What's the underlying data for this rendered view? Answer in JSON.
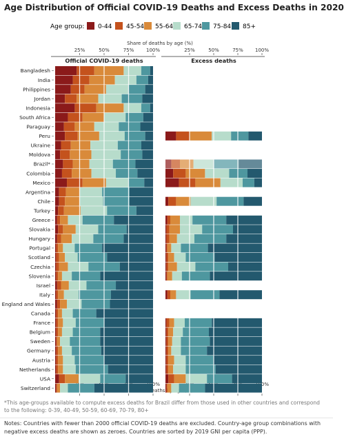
{
  "title": "Age Distribution of Official COVID-19 Deaths and Excess Deaths in 2020",
  "footnote": "*This age-groups available to compute excess deaths for Brazil differ from those used in other countries and correspond to the following: 0-39, 40-49, 50-59, 60-69, 70-79, 80+",
  "notes": "Notes: Countries with fewer than 2000 official COVID-19 deaths are excluded. Country-age group combinations with negative excess deaths are shown as zeroes. Countries are sorted by 2019 GNI per capita (PPP).",
  "chart_data": {
    "type": "bar",
    "orientation": "horizontal-stacked-percent",
    "legend": {
      "title": "Age group:",
      "placement": "top",
      "items": [
        "0-44",
        "45-54",
        "55-64",
        "65-74",
        "75-84",
        "85+"
      ],
      "colors": [
        "#8b1a1a",
        "#c4521d",
        "#d98a3a",
        "#b7dccb",
        "#4e979f",
        "#23596e"
      ]
    },
    "axis_title": "Share of deaths by age (%)",
    "ticks": [
      "25%",
      "50%",
      "75%",
      "100%"
    ],
    "xlim": [
      0,
      100
    ],
    "panels": [
      "Official COVID-19 deaths",
      "Excess deaths"
    ],
    "countries": [
      "Bangladesh",
      "India",
      "Philippines",
      "Jordan",
      "Indonesia",
      "South Africa",
      "Paraguay",
      "Peru",
      "Ukraine",
      "Moldova",
      "Brazil*",
      "Colombia",
      "Mexico",
      "Argentina",
      "Chile",
      "Turkey",
      "Greece",
      "Slovakia",
      "Hungary",
      "Portugal",
      "Scotland",
      "Czechia",
      "Slovenia",
      "Israel",
      "Italy",
      "England and Wales",
      "Canada",
      "France",
      "Belgium",
      "Sweden",
      "Germany",
      "Austria",
      "Netherlands",
      "USA",
      "Switzerland"
    ],
    "official": [
      [
        22,
        18,
        30,
        18,
        9,
        3
      ],
      [
        18,
        17,
        26,
        22,
        12,
        5
      ],
      [
        16,
        14,
        22,
        23,
        17,
        8
      ],
      [
        10,
        12,
        22,
        24,
        21,
        11
      ],
      [
        20,
        22,
        28,
        18,
        9,
        3
      ],
      [
        13,
        15,
        22,
        22,
        18,
        10
      ],
      [
        9,
        11,
        20,
        25,
        22,
        13
      ],
      [
        10,
        13,
        22,
        26,
        21,
        8
      ],
      [
        6,
        10,
        20,
        28,
        24,
        12
      ],
      [
        5,
        10,
        22,
        30,
        22,
        11
      ],
      [
        8,
        10,
        17,
        24,
        23,
        18
      ],
      [
        7,
        10,
        20,
        25,
        22,
        16
      ],
      [
        12,
        16,
        24,
        23,
        16,
        9
      ],
      [
        4,
        7,
        14,
        23,
        28,
        24
      ],
      [
        4,
        6,
        15,
        24,
        27,
        24
      ],
      [
        3,
        6,
        17,
        27,
        30,
        17
      ],
      [
        2,
        3,
        8,
        15,
        32,
        40
      ],
      [
        3,
        5,
        13,
        23,
        29,
        27
      ],
      [
        2,
        4,
        11,
        22,
        31,
        30
      ],
      [
        1,
        2,
        5,
        12,
        28,
        52
      ],
      [
        1,
        3,
        6,
        13,
        30,
        47
      ],
      [
        1,
        3,
        9,
        21,
        32,
        34
      ],
      [
        1,
        2,
        4,
        10,
        29,
        54
      ],
      [
        2,
        4,
        8,
        18,
        30,
        38
      ],
      [
        1,
        2,
        6,
        15,
        33,
        43
      ],
      [
        2,
        3,
        7,
        15,
        29,
        44
      ],
      [
        1,
        2,
        4,
        11,
        24,
        58
      ],
      [
        1,
        2,
        5,
        13,
        29,
        50
      ],
      [
        1,
        2,
        4,
        11,
        28,
        54
      ],
      [
        1,
        1,
        3,
        10,
        31,
        54
      ],
      [
        1,
        2,
        4,
        10,
        30,
        53
      ],
      [
        1,
        2,
        5,
        12,
        30,
        50
      ],
      [
        1,
        2,
        5,
        13,
        33,
        46
      ],
      [
        4,
        6,
        14,
        22,
        26,
        28
      ],
      [
        1,
        1,
        3,
        8,
        27,
        60
      ]
    ],
    "excess": [
      null,
      null,
      null,
      null,
      null,
      null,
      null,
      [
        11,
        14,
        23,
        20,
        18,
        14
      ],
      null,
      null,
      [
        6,
        9,
        14,
        21,
        26,
        24
      ],
      [
        8,
        13,
        20,
        25,
        19,
        15
      ],
      [
        14,
        17,
        26,
        23,
        12,
        8
      ],
      null,
      [
        3,
        8,
        15,
        27,
        28,
        19
      ],
      null,
      [
        2,
        3,
        10,
        13,
        35,
        37
      ],
      [
        1,
        3,
        11,
        23,
        32,
        30
      ],
      [
        1,
        3,
        8,
        18,
        33,
        37
      ],
      [
        1,
        1,
        4,
        10,
        28,
        56
      ],
      [
        1,
        2,
        6,
        12,
        30,
        49
      ],
      [
        1,
        2,
        9,
        19,
        34,
        35
      ],
      [
        1,
        1,
        5,
        10,
        29,
        54
      ],
      null,
      [
        2,
        3,
        6,
        15,
        30,
        44
      ],
      null,
      null,
      [
        1,
        3,
        5,
        11,
        28,
        52
      ],
      [
        1,
        2,
        5,
        10,
        27,
        55
      ],
      [
        1,
        2,
        4,
        9,
        30,
        54
      ],
      [
        1,
        2,
        3,
        10,
        27,
        57
      ],
      [
        1,
        2,
        6,
        12,
        29,
        50
      ],
      [
        1,
        2,
        5,
        13,
        31,
        48
      ],
      [
        3,
        6,
        12,
        22,
        26,
        31
      ],
      [
        1,
        1,
        4,
        8,
        27,
        59
      ]
    ]
  }
}
